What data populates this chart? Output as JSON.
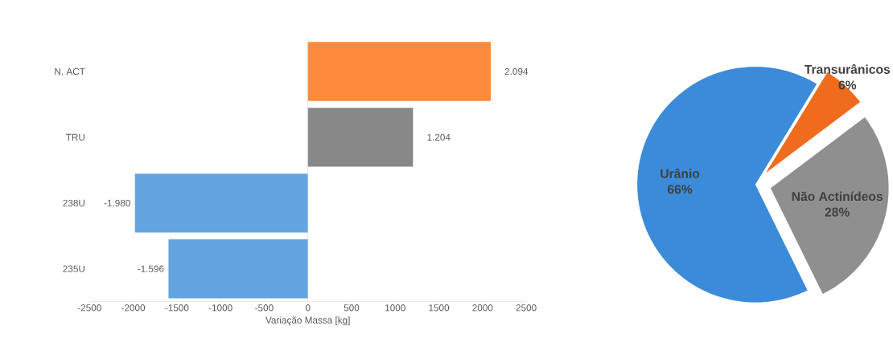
{
  "chart_data": [
    {
      "type": "bar",
      "orientation": "horizontal",
      "categories": [
        "N. ACT",
        "TRU",
        "238U",
        "235U"
      ],
      "values": [
        2094,
        1204,
        -1980,
        -1596
      ],
      "colors": [
        "#fd8b3b",
        "#888888",
        "#64a5e1",
        "#64a5e1"
      ],
      "value_labels": [
        "2.094",
        "1.204",
        "-1.980",
        "-1.596"
      ],
      "xlim": [
        -2500,
        2500
      ],
      "xticks": [
        -2500,
        -2000,
        -1500,
        -1000,
        -500,
        0,
        500,
        1000,
        1500,
        2000,
        2500
      ],
      "xlabel": "Variação Massa [kg]"
    },
    {
      "type": "pie",
      "categories": [
        "Urânio",
        "Transurânicos",
        "Não Actinídeos"
      ],
      "values": [
        66,
        6,
        28
      ],
      "colors": [
        "#3b8bd9",
        "#ef6c1f",
        "#8f8f8f"
      ],
      "value_labels": [
        "66%",
        "6%",
        "28%"
      ]
    }
  ]
}
